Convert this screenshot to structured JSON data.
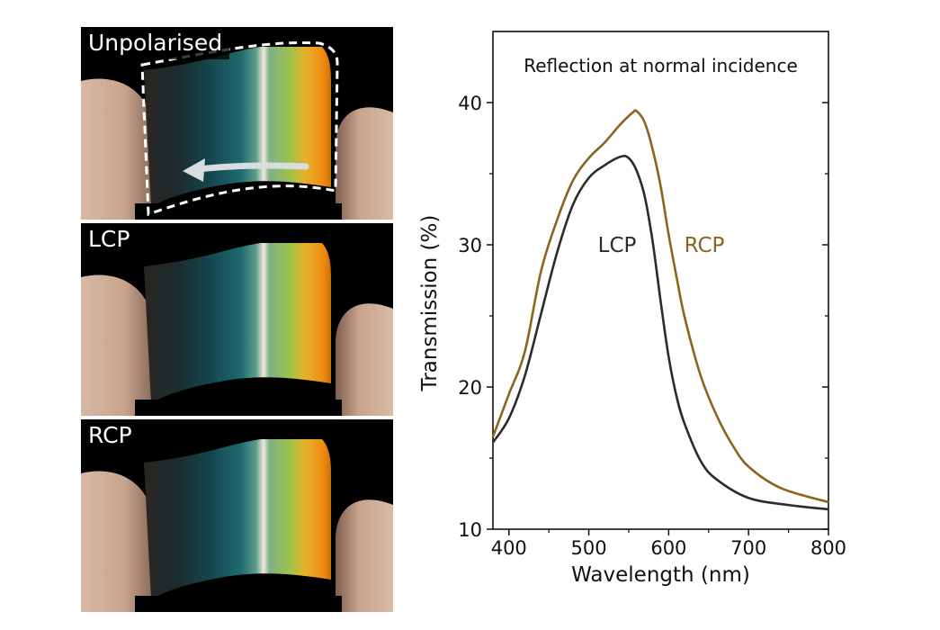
{
  "panels": [
    {
      "label": "Unpolarised",
      "outline": true,
      "arrow": true
    },
    {
      "label": "LCP",
      "outline": false,
      "arrow": false
    },
    {
      "label": "RCP",
      "outline": false,
      "arrow": false
    }
  ],
  "colors": {
    "lcp": "#2b2b2b",
    "rcp": "#8c6420",
    "axis": "#111111"
  },
  "chart_data": {
    "type": "line",
    "title": "Reflection at normal incidence",
    "xlabel": "Wavelength (nm)",
    "ylabel": "Transmission (%)",
    "xlim": [
      380,
      800
    ],
    "ylim": [
      10,
      45
    ],
    "xticks": [
      400,
      500,
      600,
      700,
      800
    ],
    "yticks": [
      10,
      20,
      30,
      40
    ],
    "grid": false,
    "series": [
      {
        "name": "LCP",
        "color": "#2b2b2b",
        "x": [
          380,
          400,
          420,
          440,
          460,
          480,
          500,
          520,
          540,
          550,
          560,
          570,
          580,
          590,
          600,
          610,
          620,
          640,
          660,
          700,
          750,
          800
        ],
        "y": [
          16.1,
          17.8,
          20.8,
          25.1,
          29.4,
          32.8,
          34.7,
          35.6,
          36.2,
          36.1,
          35.2,
          33.4,
          30.2,
          26.0,
          22.1,
          19.3,
          17.4,
          14.8,
          13.5,
          12.2,
          11.7,
          11.4
        ]
      },
      {
        "name": "RCP",
        "color": "#8c6420",
        "x": [
          380,
          400,
          420,
          440,
          460,
          480,
          500,
          520,
          540,
          555,
          560,
          570,
          580,
          590,
          600,
          610,
          620,
          640,
          660,
          680,
          700,
          740,
          800
        ],
        "y": [
          16.5,
          19.5,
          22.5,
          28.1,
          31.7,
          34.5,
          36.1,
          37.2,
          38.5,
          39.3,
          39.4,
          38.6,
          36.7,
          34.1,
          30.7,
          27.7,
          24.9,
          20.8,
          18.0,
          15.9,
          14.4,
          12.9,
          11.9
        ]
      }
    ]
  }
}
